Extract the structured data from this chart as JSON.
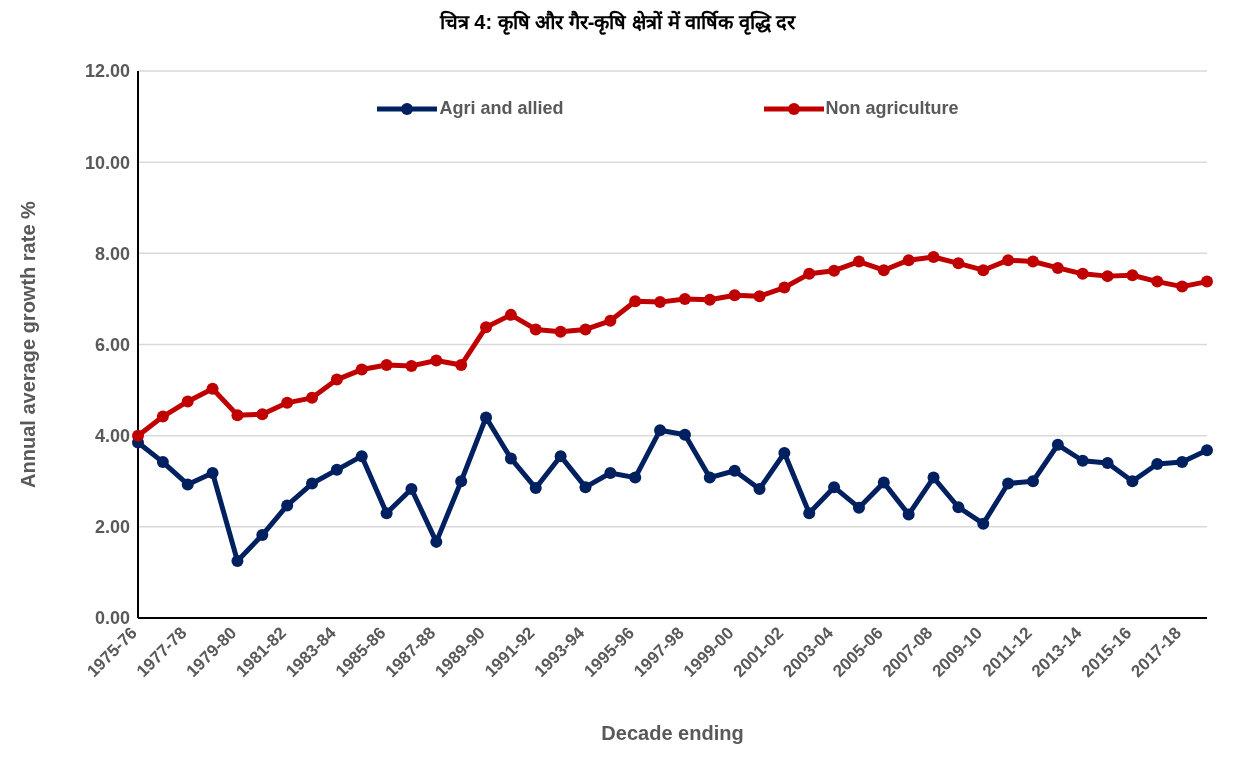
{
  "chart_data": {
    "type": "line",
    "title": "चित्र 4: कृषि और गैर-कृषि क्षेत्रों में वार्षिक वृद्धि दर",
    "xlabel": "Decade ending",
    "ylabel": "Annual average growth rate %",
    "categories": [
      "1975-76",
      null,
      "1977-78",
      null,
      "1979-80",
      null,
      "1981-82",
      null,
      "1983-84",
      null,
      "1985-86",
      null,
      "1987-88",
      null,
      "1989-90",
      null,
      "1991-92",
      null,
      "1993-94",
      null,
      "1995-96",
      null,
      "1997-98",
      null,
      "1999-00",
      null,
      "2001-02",
      null,
      "2003-04",
      null,
      "2005-06",
      null,
      "2007-08",
      null,
      "2009-10",
      null,
      "2011-12",
      null,
      "2013-14",
      null,
      "2015-16",
      null,
      "2017-18",
      null
    ],
    "series": [
      {
        "name": "Agri and allied",
        "color": "#002060",
        "values": [
          3.85,
          3.42,
          2.93,
          3.18,
          1.25,
          1.82,
          2.47,
          2.95,
          3.25,
          3.55,
          2.3,
          2.83,
          1.67,
          3.0,
          4.4,
          3.5,
          2.85,
          3.55,
          2.87,
          3.18,
          3.08,
          4.12,
          4.02,
          3.08,
          3.23,
          2.83,
          3.62,
          2.3,
          2.87,
          2.42,
          2.97,
          2.27,
          3.08,
          2.43,
          2.07,
          2.95,
          3.0,
          3.8,
          3.45,
          3.4,
          3.0,
          3.38,
          3.42,
          3.68
        ]
      },
      {
        "name": "Non agriculture",
        "color": "#c00000",
        "values": [
          4.0,
          4.42,
          4.75,
          5.03,
          4.45,
          4.47,
          4.72,
          4.83,
          5.23,
          5.45,
          5.55,
          5.53,
          5.65,
          5.55,
          6.38,
          6.65,
          6.33,
          6.28,
          6.33,
          6.52,
          6.95,
          6.93,
          7.0,
          6.98,
          7.08,
          7.06,
          7.25,
          7.55,
          7.62,
          7.82,
          7.63,
          7.85,
          7.92,
          7.78,
          7.63,
          7.85,
          7.82,
          7.68,
          7.55,
          7.5,
          7.52,
          7.38,
          7.27,
          7.38
        ]
      }
    ],
    "ylim": [
      0,
      12
    ],
    "yticks": [
      {
        "value": 0,
        "label": "0.00"
      },
      {
        "value": 2,
        "label": "2.00"
      },
      {
        "value": 4,
        "label": "4.00"
      },
      {
        "value": 6,
        "label": "6.00"
      },
      {
        "value": 8,
        "label": "8.00"
      },
      {
        "value": 10,
        "label": "10.00"
      },
      {
        "value": 12,
        "label": "12.00"
      }
    ],
    "grid": "y",
    "legend": "top",
    "marker": "circle",
    "line_style": "solid"
  }
}
